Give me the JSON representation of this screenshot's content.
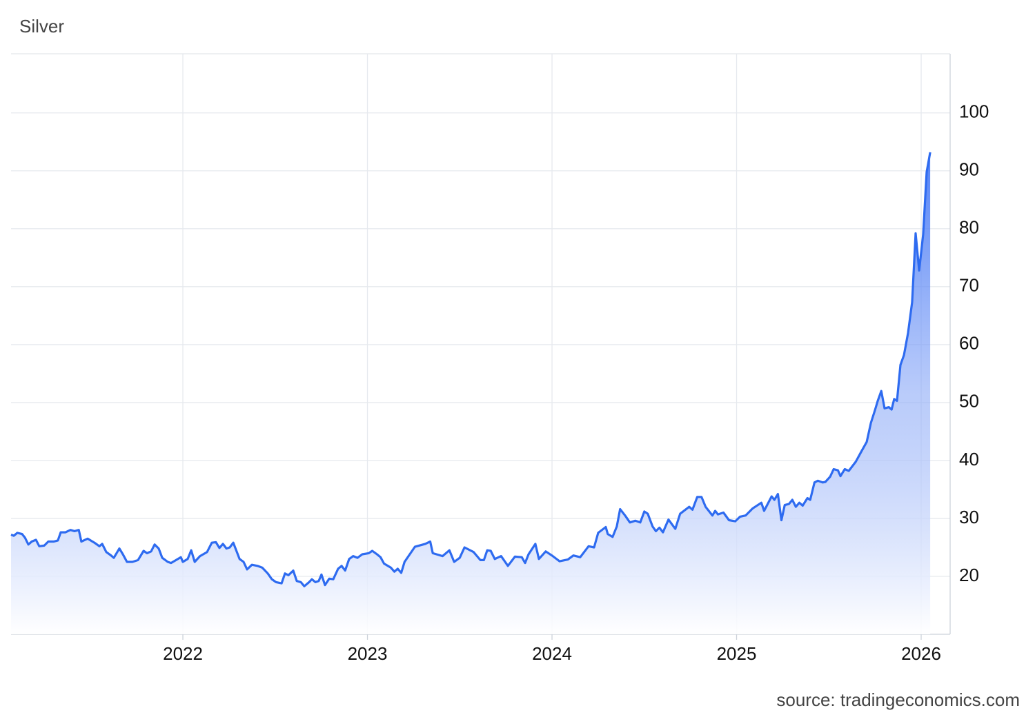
{
  "chart_data": {
    "type": "area",
    "title": "Silver",
    "source": "source: tradingeconomics.com",
    "color": "#2e6bf0",
    "grid": true,
    "xlim": [
      2021.069,
      2026.157
    ],
    "xticks": [
      2022,
      2023,
      2024,
      2025,
      2026
    ],
    "ylim": [
      10,
      110.2
    ],
    "yticks": [
      20,
      30,
      40,
      50,
      60,
      70,
      80,
      90,
      100
    ],
    "x": [
      2021.069,
      2021.084,
      2021.103,
      2021.129,
      2021.144,
      2021.163,
      2021.181,
      2021.204,
      2021.222,
      2021.249,
      2021.271,
      2021.301,
      2021.323,
      2021.338,
      2021.364,
      2021.391,
      2021.413,
      2021.436,
      2021.45,
      2021.484,
      2021.521,
      2021.548,
      2021.563,
      2021.585,
      2021.607,
      2021.626,
      2021.656,
      2021.675,
      2021.697,
      2021.727,
      2021.757,
      2021.787,
      2021.806,
      2021.828,
      2021.847,
      2021.869,
      2021.888,
      2021.918,
      2021.936,
      2021.963,
      2021.989,
      2022.0,
      2022.026,
      2022.045,
      2022.064,
      2022.093,
      2022.131,
      2022.157,
      2022.179,
      2022.198,
      2022.217,
      2022.236,
      2022.254,
      2022.273,
      2022.307,
      2022.329,
      2022.348,
      2022.374,
      2022.404,
      2022.43,
      2022.46,
      2022.482,
      2022.505,
      2022.535,
      2022.553,
      2022.572,
      2022.598,
      2022.617,
      2022.639,
      2022.658,
      2022.684,
      2022.699,
      2022.718,
      2022.736,
      2022.751,
      2022.77,
      2022.793,
      2022.815,
      2022.841,
      2022.86,
      2022.879,
      2022.901,
      2022.923,
      2022.946,
      2022.972,
      2023.007,
      2023.026,
      2023.052,
      2023.071,
      2023.09,
      2023.127,
      2023.146,
      2023.164,
      2023.183,
      2023.201,
      2023.257,
      2023.313,
      2023.34,
      2023.354,
      2023.407,
      2023.444,
      2023.47,
      2023.5,
      2023.526,
      2023.575,
      2023.612,
      2023.631,
      2023.649,
      2023.668,
      2023.69,
      2023.724,
      2023.761,
      2023.799,
      2023.836,
      2023.854,
      2023.873,
      2023.91,
      2023.929,
      2023.966,
      2024.004,
      2024.041,
      2024.086,
      2024.116,
      2024.153,
      2024.198,
      2024.228,
      2024.25,
      2024.291,
      2024.302,
      2024.328,
      2024.351,
      2024.369,
      2024.396,
      2024.422,
      2024.451,
      2024.478,
      2024.5,
      2024.519,
      2024.545,
      2024.563,
      2024.582,
      2024.601,
      2024.631,
      2024.668,
      2024.694,
      2024.743,
      2024.761,
      2024.787,
      2024.81,
      2024.832,
      2024.869,
      2024.884,
      2024.899,
      2024.929,
      2024.959,
      2024.993,
      2025.019,
      2025.049,
      2025.086,
      2025.134,
      2025.149,
      2025.19,
      2025.205,
      2025.224,
      2025.243,
      2025.261,
      2025.284,
      2025.302,
      2025.321,
      2025.34,
      2025.358,
      2025.384,
      2025.399,
      2025.422,
      2025.44,
      2025.466,
      2025.481,
      2025.507,
      2025.526,
      2025.549,
      2025.563,
      2025.586,
      2025.608,
      2025.646,
      2025.675,
      2025.705,
      2025.728,
      2025.75,
      2025.765,
      2025.784,
      2025.802,
      2025.825,
      2025.84,
      2025.854,
      2025.869,
      2025.888,
      2025.907,
      2025.929,
      2025.951,
      2025.97,
      2025.989,
      2026.011,
      2026.03,
      2026.049
    ],
    "values": [
      27.2,
      27.0,
      27.5,
      27.3,
      26.7,
      25.5,
      26.0,
      26.3,
      25.2,
      25.3,
      26.0,
      26.0,
      26.2,
      27.6,
      27.6,
      28.0,
      27.8,
      28.0,
      26.0,
      26.5,
      25.8,
      25.2,
      25.6,
      24.2,
      23.7,
      23.2,
      24.8,
      23.8,
      22.5,
      22.5,
      22.8,
      24.4,
      24.0,
      24.3,
      25.5,
      24.8,
      23.2,
      22.5,
      22.3,
      22.8,
      23.3,
      22.5,
      23.0,
      24.5,
      22.5,
      23.5,
      24.2,
      25.8,
      25.9,
      24.9,
      25.6,
      24.8,
      25.0,
      25.8,
      23.0,
      22.5,
      21.2,
      22.0,
      21.8,
      21.5,
      20.5,
      19.5,
      19.0,
      18.8,
      20.5,
      20.2,
      21.0,
      19.2,
      19.0,
      18.3,
      19.0,
      19.5,
      19.0,
      19.2,
      20.3,
      18.5,
      19.6,
      19.5,
      21.3,
      21.8,
      21.0,
      23.0,
      23.5,
      23.2,
      23.8,
      24.0,
      24.4,
      23.8,
      23.3,
      22.2,
      21.5,
      20.8,
      21.3,
      20.6,
      22.5,
      25.1,
      25.6,
      26.0,
      24.0,
      23.5,
      24.5,
      22.5,
      23.2,
      25.0,
      24.2,
      22.8,
      22.8,
      24.5,
      24.4,
      23.0,
      23.5,
      21.8,
      23.4,
      23.3,
      22.3,
      23.8,
      25.6,
      23.0,
      24.3,
      23.5,
      22.6,
      22.9,
      23.6,
      23.3,
      25.2,
      25.0,
      27.5,
      28.5,
      27.3,
      26.8,
      28.6,
      31.6,
      30.5,
      29.3,
      29.6,
      29.3,
      31.2,
      30.8,
      28.6,
      27.8,
      28.4,
      27.6,
      29.8,
      28.2,
      30.8,
      32.0,
      31.5,
      33.7,
      33.7,
      32.0,
      30.5,
      31.3,
      30.7,
      31.0,
      29.7,
      29.5,
      30.3,
      30.5,
      31.7,
      32.7,
      31.3,
      33.8,
      33.2,
      34.2,
      29.7,
      32.3,
      32.5,
      33.2,
      32.0,
      32.7,
      32.2,
      33.5,
      33.2,
      36.2,
      36.5,
      36.2,
      36.3,
      37.2,
      38.5,
      38.3,
      37.3,
      38.5,
      38.2,
      39.8,
      41.5,
      43.2,
      46.5,
      48.7,
      50.3,
      52.0,
      49.0,
      49.2,
      48.8,
      50.6,
      50.3,
      56.5,
      58.2,
      62.0,
      67.3,
      79.2,
      72.8,
      79.0,
      89.8,
      93.2
    ]
  }
}
